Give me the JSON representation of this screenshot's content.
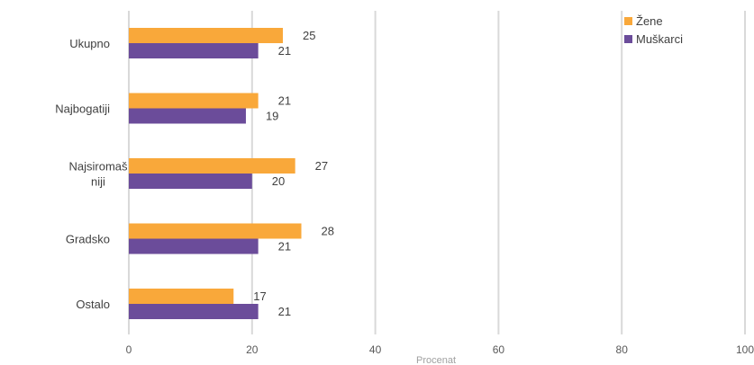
{
  "chart_data": {
    "type": "bar",
    "orientation": "horizontal",
    "categories": [
      "Ukupno",
      "Najbogatiji",
      "Najsiromaš niji",
      "Gradsko",
      "Ostalo"
    ],
    "category_label_lines": [
      [
        "Ukupno"
      ],
      [
        "Najbogatiji"
      ],
      [
        "Najsiromaš",
        "niji"
      ],
      [
        "Gradsko"
      ],
      [
        "Ostalo"
      ]
    ],
    "series": [
      {
        "name": "Žene",
        "values": [
          25,
          21,
          27,
          28,
          17
        ],
        "color": "#F9A83A"
      },
      {
        "name": "Muškarci",
        "values": [
          21,
          19,
          20,
          21,
          21
        ],
        "color": "#6B4C9A"
      }
    ],
    "xlabel": "Procenat",
    "xlim": [
      0,
      100
    ],
    "xticks": [
      0,
      20,
      40,
      60,
      80,
      100
    ],
    "grid": true,
    "gridline_color": "#d9d9d9",
    "legend_position": "top-right",
    "data_labels": true
  }
}
